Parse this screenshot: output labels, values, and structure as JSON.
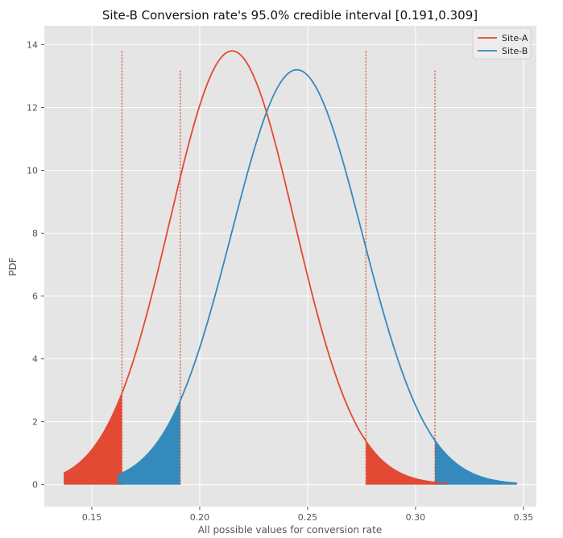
{
  "chart_data": {
    "type": "line",
    "title": "Site-B Conversion rate's 95.0% credible interval  [0.191,0.309]",
    "xlabel": "All possible values for conversion rate",
    "ylabel": "PDF",
    "xlim": [
      0.128,
      0.356
    ],
    "ylim": [
      -0.7,
      14.6
    ],
    "xticks": [
      0.15,
      0.2,
      0.25,
      0.3,
      0.35
    ],
    "xtick_labels": [
      "0.15",
      "0.20",
      "0.25",
      "0.30",
      "0.35"
    ],
    "yticks": [
      0,
      2,
      4,
      6,
      8,
      10,
      12,
      14
    ],
    "ytick_labels": [
      "0",
      "2",
      "4",
      "6",
      "8",
      "10",
      "12",
      "14"
    ],
    "grid": true,
    "legend_position": "top-right",
    "background": "#e5e5e5",
    "series": [
      {
        "name": "Site-A",
        "color": "#e24a33",
        "peak_x": 0.215,
        "peak_y": 13.8,
        "x_range": [
          0.137,
          0.315
        ],
        "left_interval_bound": 0.164,
        "right_interval_bound": 0.277,
        "bound_line_top": 13.8
      },
      {
        "name": "Site-B",
        "color": "#348abd",
        "peak_x": 0.245,
        "peak_y": 13.2,
        "x_range": [
          0.162,
          0.347
        ],
        "left_interval_bound": 0.191,
        "right_interval_bound": 0.309,
        "bound_line_top": 13.2
      }
    ]
  }
}
